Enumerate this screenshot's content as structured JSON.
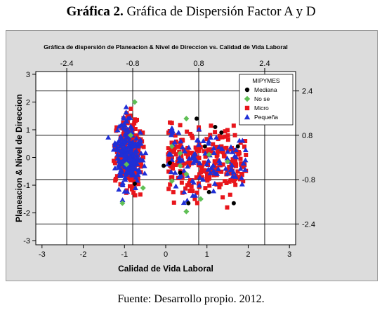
{
  "caption": {
    "prefix": "Gráfica 2.",
    "rest": "Gráfica de Dispersión Factor A y D"
  },
  "footer": "Fuente: Desarrollo propio. 2012.",
  "colors": {
    "Mediana": "#000000",
    "Micro": "#e8151b",
    "No se": "#5fbf55",
    "Pequeña": "#1f2fd6",
    "bg": "#dcdcdc",
    "plot": "#ffffff"
  },
  "chart_data": {
    "type": "scatter",
    "title": "Gráfica de dispersión de Planeacion & Nivel de Direccion vs. Calidad de Vida Laboral",
    "xlabel": "Calidad de Vida Laboral",
    "ylabel": "Planeacion & Nivel de Direccion",
    "xlim": [
      -3.15,
      3.15
    ],
    "ylim": [
      -3.15,
      3.1
    ],
    "x_ticks": [
      -3,
      -2,
      -1,
      0,
      1,
      2,
      3
    ],
    "y_ticks": [
      -3,
      -2,
      -1,
      0,
      1,
      2,
      3
    ],
    "x_ticks_top": [
      -2.4,
      -0.8,
      0.8,
      2.4
    ],
    "y_ticks_right": [
      2.4,
      0.8,
      -0.8,
      -2.4
    ],
    "reference_lines": {
      "x": [
        -2.4,
        -0.8,
        0.8,
        2.4
      ],
      "y": [
        2.4,
        0.8,
        -0.8,
        -2.4
      ]
    },
    "legend": {
      "title": "MIPYMES",
      "position": "top-right"
    },
    "series": [
      {
        "name": "Mediana",
        "marker": "circle",
        "points": [
          [
            0.75,
            1.4
          ],
          [
            1.2,
            1.1
          ],
          [
            0.95,
            0.4
          ],
          [
            1.75,
            0.4
          ],
          [
            0.1,
            -0.2
          ],
          [
            -0.05,
            -0.3
          ],
          [
            1.05,
            -1.25
          ],
          [
            0.55,
            -1.65
          ],
          [
            1.65,
            -1.65
          ],
          [
            0.35,
            -0.55
          ],
          [
            1.35,
            0.9
          ],
          [
            -0.75,
            -0.95
          ]
        ]
      },
      {
        "name": "No se",
        "marker": "diamond",
        "points": [
          [
            -0.75,
            2.0
          ],
          [
            0.5,
            1.4
          ],
          [
            0.35,
            0.15
          ],
          [
            0.15,
            0.4
          ],
          [
            1.05,
            0.1
          ],
          [
            0.5,
            -0.6
          ],
          [
            0.5,
            -1.95
          ],
          [
            -0.55,
            -1.1
          ],
          [
            0.15,
            -0.85
          ],
          [
            -0.95,
            -0.25
          ],
          [
            -1.05,
            -1.65
          ],
          [
            0.85,
            -1.5
          ],
          [
            -0.85,
            0.8
          ],
          [
            1.5,
            -0.15
          ],
          [
            0.35,
            -0.3
          ]
        ]
      },
      {
        "name": "Micro",
        "marker": "square",
        "points": [],
        "generated": true,
        "count": 520
      },
      {
        "name": "Pequeña",
        "marker": "triangle",
        "points": [],
        "generated": true,
        "count": 300
      }
    ]
  }
}
